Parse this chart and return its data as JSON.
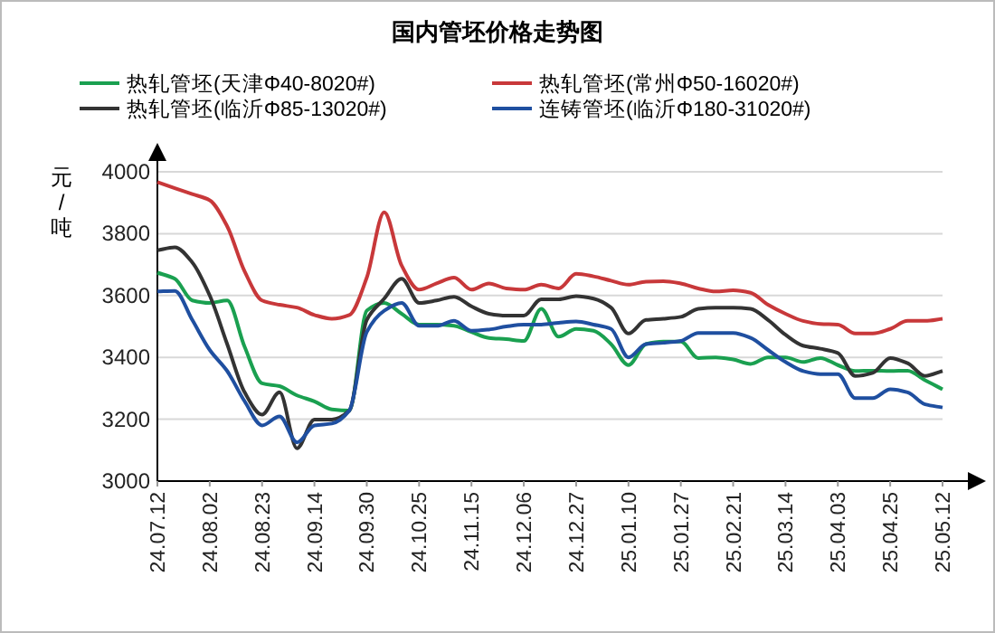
{
  "chart_data": {
    "type": "line",
    "title": "国内管坯价格走势图",
    "ylabel": "元/吨",
    "legend": "top",
    "grid": "y",
    "marker": "none",
    "line_style": "solid",
    "categories": [
      "24.07.12",
      null,
      null,
      "24.08.02",
      null,
      null,
      "24.08.23",
      null,
      null,
      "24.09.14",
      null,
      null,
      "24.09.30",
      null,
      null,
      "24.10.25",
      null,
      null,
      "24.11.15",
      null,
      null,
      "24.12.06",
      null,
      null,
      "24.12.27",
      null,
      null,
      "25.01.10",
      null,
      null,
      "25.01.27",
      null,
      null,
      "25.02.21",
      null,
      null,
      "25.03.14",
      null,
      null,
      "25.04.03",
      null,
      null,
      "25.04.25",
      null,
      null,
      "25.05.12"
    ],
    "ylim": [
      3000,
      4000
    ],
    "yticks": [
      3000,
      3200,
      3400,
      3600,
      3800,
      4000
    ],
    "series": [
      {
        "name": "热轧管坯(天津Φ40-8020#)",
        "color": "#1aa050",
        "values": [
          3674,
          3654,
          3584,
          3576,
          3584,
          3434,
          3316,
          3307,
          3277,
          3258,
          3232,
          3228,
          3551,
          3576,
          3541,
          3506,
          3506,
          3502,
          3482,
          3463,
          3459,
          3453,
          3557,
          3467,
          3492,
          3486,
          3443,
          3375,
          3443,
          3451,
          3451,
          3398,
          3400,
          3393,
          3379,
          3400,
          3400,
          3385,
          3398,
          3375,
          3356,
          3357,
          3356,
          3357,
          3326,
          3297
        ]
      },
      {
        "name": "热轧管坯(常州Φ50-16020#)",
        "color": "#c8383a",
        "values": [
          3967,
          3947,
          3928,
          3908,
          3824,
          3678,
          3584,
          3570,
          3561,
          3537,
          3525,
          3537,
          3658,
          3869,
          3697,
          3619,
          3639,
          3658,
          3619,
          3639,
          3623,
          3619,
          3635,
          3623,
          3670,
          3662,
          3648,
          3635,
          3645,
          3646,
          3639,
          3623,
          3613,
          3617,
          3609,
          3570,
          3541,
          3518,
          3508,
          3506,
          3477,
          3477,
          3492,
          3518,
          3518,
          3525
        ]
      },
      {
        "name": "热轧管坯(临沂Φ85-13020#)",
        "color": "#333333",
        "values": [
          3746,
          3756,
          3707,
          3600,
          3443,
          3287,
          3215,
          3287,
          3106,
          3199,
          3199,
          3228,
          3521,
          3590,
          3654,
          3576,
          3584,
          3596,
          3565,
          3541,
          3535,
          3535,
          3588,
          3588,
          3598,
          3590,
          3561,
          3477,
          3521,
          3525,
          3531,
          3557,
          3561,
          3561,
          3557,
          3521,
          3473,
          3438,
          3428,
          3414,
          3340,
          3350,
          3398,
          3381,
          3340,
          3356
        ]
      },
      {
        "name": "连铸管坯(临沂Φ180-31020#)",
        "color": "#1f4fa0",
        "values": [
          3613,
          3615,
          3521,
          3424,
          3356,
          3258,
          3180,
          3209,
          3125,
          3180,
          3186,
          3228,
          3482,
          3551,
          3576,
          3502,
          3502,
          3518,
          3486,
          3490,
          3500,
          3506,
          3506,
          3512,
          3516,
          3506,
          3492,
          3400,
          3443,
          3447,
          3453,
          3479,
          3479,
          3479,
          3463,
          3424,
          3385,
          3356,
          3346,
          3346,
          3268,
          3268,
          3297,
          3287,
          3248,
          3238
        ]
      }
    ]
  }
}
